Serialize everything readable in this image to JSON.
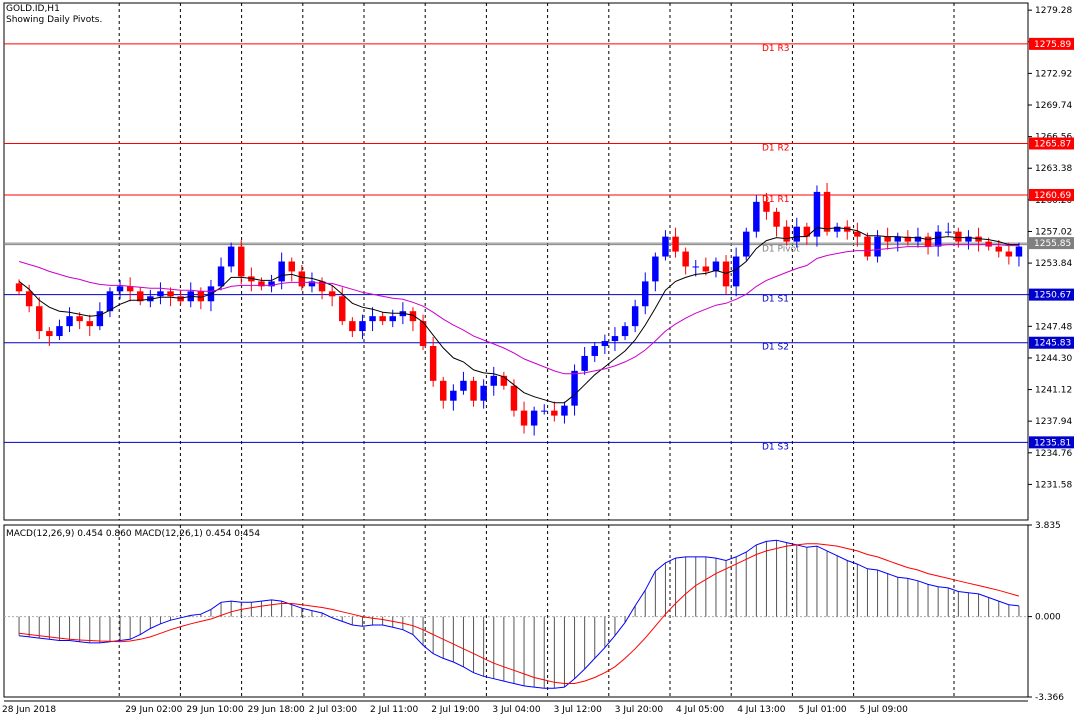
{
  "window": {
    "title": "GOLD.ID,H1",
    "subtitle": "Showing Daily Pivots."
  },
  "colors": {
    "bull": "#0000ff",
    "bear": "#ff0000",
    "ma_fast": "#000000",
    "ma_slow": "#cc00cc",
    "resistance": "#ff0000",
    "support": "#0000cc",
    "pivot": "#808080",
    "macd_main": "#0000ff",
    "macd_signal": "#ff0000",
    "grid": "#000000"
  },
  "chart_data": [
    {
      "type": "candlestick",
      "symbol": "GOLD.ID",
      "timeframe": "H1",
      "ylim": [
        1228.0,
        1280.0
      ],
      "y_ticks": [
        "1279.28",
        "1276.10",
        "1272.92",
        "1269.74",
        "1266.56",
        "1263.38",
        "1260.20",
        "1257.02",
        "1253.84",
        "1250.66",
        "1247.48",
        "1244.30",
        "1241.12",
        "1237.94",
        "1234.76",
        "1231.58"
      ],
      "x_tick_labels": [
        "28 Jun 2018",
        "29 Jun 02:00",
        "29 Jun 10:00",
        "29 Jun 18:00",
        "2 Jul 03:00",
        "2 Jul 11:00",
        "2 Jul 19:00",
        "3 Jul 04:00",
        "3 Jul 12:00",
        "3 Jul 20:00",
        "4 Jul 05:00",
        "4 Jul 13:00",
        "5 Jul 01:00",
        "5 Jul 09:00"
      ],
      "current_price": "1255.85",
      "pivot_levels": [
        {
          "name": "D1 R3",
          "value": 1275.89,
          "label": "1275.89",
          "kind": "resistance"
        },
        {
          "name": "D1 R2",
          "value": 1265.87,
          "label": "1265.87",
          "kind": "resistance"
        },
        {
          "name": "D1 R1",
          "value": 1260.69,
          "label": "1260.69",
          "kind": "resistance"
        },
        {
          "name": "D1 Pivot",
          "value": 1255.7,
          "label": "",
          "kind": "pivot"
        },
        {
          "name": "D1 S1",
          "value": 1250.67,
          "label": "1250.67",
          "kind": "support"
        },
        {
          "name": "D1 S2",
          "value": 1245.83,
          "label": "1245.83",
          "kind": "support"
        },
        {
          "name": "D1 S3",
          "value": 1235.81,
          "label": "1235.81",
          "kind": "support"
        }
      ],
      "close": [
        1251.0,
        1249.5,
        1247.0,
        1246.5,
        1247.5,
        1248.5,
        1248.0,
        1247.5,
        1249.0,
        1251.0,
        1251.5,
        1251.0,
        1250.0,
        1250.5,
        1251.0,
        1250.5,
        1250.0,
        1251.0,
        1250.0,
        1251.5,
        1253.5,
        1255.5,
        1252.5,
        1252.0,
        1251.5,
        1252.0,
        1254.0,
        1253.0,
        1251.5,
        1252.0,
        1251.0,
        1250.5,
        1248.0,
        1247.0,
        1248.0,
        1248.5,
        1248.0,
        1248.5,
        1249.0,
        1248.0,
        1245.5,
        1242.0,
        1240.0,
        1241.0,
        1242.0,
        1240.0,
        1241.5,
        1242.5,
        1241.5,
        1239.0,
        1237.5,
        1239.0,
        1239.0,
        1238.5,
        1239.5,
        1243.0,
        1244.5,
        1245.5,
        1246.0,
        1246.5,
        1247.5,
        1249.5,
        1252.0,
        1254.5,
        1256.5,
        1255.0,
        1253.5,
        1253.5,
        1253.0,
        1254.0,
        1251.5,
        1254.5,
        1257.0,
        1260.0,
        1259.0,
        1257.5,
        1256.0,
        1257.5,
        1256.5,
        1261.0,
        1257.0,
        1257.5,
        1257.0,
        1256.5,
        1254.5,
        1256.5,
        1256.0,
        1256.5,
        1256.0,
        1256.5,
        1255.5,
        1257.0,
        1257.0,
        1256.0,
        1256.5,
        1256.0,
        1255.5,
        1255.0,
        1254.5,
        1255.5
      ],
      "moving_averages": [
        {
          "kind": "fast",
          "values": [
            1252.0,
            1251.2,
            1250.1,
            1249.4,
            1249.0,
            1248.9,
            1248.7,
            1248.5,
            1248.6,
            1249.1,
            1249.7,
            1250.1,
            1250.1,
            1250.2,
            1250.4,
            1250.4,
            1250.3,
            1250.5,
            1250.4,
            1250.7,
            1251.4,
            1252.4,
            1252.4,
            1252.3,
            1252.1,
            1252.1,
            1252.6,
            1252.7,
            1252.4,
            1252.3,
            1252.0,
            1251.6,
            1250.7,
            1249.8,
            1249.4,
            1249.2,
            1248.9,
            1248.8,
            1248.8,
            1248.6,
            1247.9,
            1246.6,
            1245.3,
            1244.3,
            1243.9,
            1243.1,
            1242.8,
            1242.7,
            1242.4,
            1241.6,
            1240.8,
            1240.4,
            1240.1,
            1239.8,
            1239.8,
            1240.6,
            1241.6,
            1242.6,
            1243.4,
            1244.2,
            1245.0,
            1246.1,
            1247.6,
            1249.3,
            1251.1,
            1252.0,
            1252.4,
            1252.7,
            1252.8,
            1253.1,
            1252.8,
            1253.2,
            1254.0,
            1255.3,
            1256.1,
            1256.4,
            1256.3,
            1256.5,
            1256.5,
            1257.4,
            1257.3,
            1257.4,
            1257.3,
            1257.1,
            1256.6,
            1256.6,
            1256.5,
            1256.5,
            1256.4,
            1256.4,
            1256.2,
            1256.4,
            1256.5,
            1256.4,
            1256.4,
            1256.3,
            1256.2,
            1256.0,
            1255.7,
            1255.7
          ]
        },
        {
          "kind": "slow",
          "values": [
            1254.0,
            1253.7,
            1253.4,
            1253.0,
            1252.7,
            1252.4,
            1252.2,
            1251.9,
            1251.7,
            1251.6,
            1251.6,
            1251.5,
            1251.4,
            1251.3,
            1251.3,
            1251.2,
            1251.1,
            1251.1,
            1251.0,
            1251.0,
            1251.2,
            1251.5,
            1251.6,
            1251.6,
            1251.6,
            1251.6,
            1251.8,
            1251.9,
            1251.9,
            1251.9,
            1251.8,
            1251.8,
            1251.5,
            1251.2,
            1250.9,
            1250.7,
            1250.5,
            1250.3,
            1250.2,
            1249.9,
            1249.5,
            1248.9,
            1248.2,
            1247.6,
            1247.1,
            1246.5,
            1246.1,
            1245.7,
            1245.3,
            1244.8,
            1244.2,
            1243.8,
            1243.4,
            1243.0,
            1242.7,
            1242.7,
            1242.8,
            1243.0,
            1243.2,
            1243.5,
            1243.9,
            1244.4,
            1245.1,
            1246.0,
            1247.0,
            1247.7,
            1248.3,
            1248.8,
            1249.2,
            1249.6,
            1249.8,
            1250.2,
            1250.7,
            1251.5,
            1252.1,
            1252.5,
            1252.9,
            1253.3,
            1253.6,
            1254.3,
            1254.6,
            1254.8,
            1255.0,
            1255.1,
            1255.1,
            1255.2,
            1255.3,
            1255.4,
            1255.5,
            1255.5,
            1255.5,
            1255.6,
            1255.7,
            1255.7,
            1255.7,
            1255.7,
            1255.7,
            1255.7,
            1255.6,
            1255.6
          ]
        }
      ]
    },
    {
      "type": "bar",
      "indicator": "MACD",
      "label": "MACD(12,26,9) 0.454 0.860 MACD(12,26,1) 0.454 0.454",
      "ylim": [
        -3.366,
        3.835
      ],
      "y_ticks": [
        "3.835",
        "0.000",
        "-3.366"
      ],
      "series": [
        {
          "kind": "histogram",
          "values": [
            -0.8,
            -0.85,
            -0.9,
            -0.95,
            -1.0,
            -1.0,
            -1.05,
            -1.1,
            -1.1,
            -1.05,
            -1.0,
            -0.95,
            -0.75,
            -0.5,
            -0.3,
            -0.15,
            -0.05,
            0.05,
            0.1,
            0.3,
            0.6,
            0.65,
            0.6,
            0.6,
            0.65,
            0.7,
            0.65,
            0.5,
            0.35,
            0.25,
            0.15,
            -0.05,
            -0.2,
            -0.35,
            -0.4,
            -0.35,
            -0.35,
            -0.45,
            -0.55,
            -0.75,
            -1.2,
            -1.55,
            -1.75,
            -1.9,
            -2.1,
            -2.35,
            -2.5,
            -2.6,
            -2.7,
            -2.8,
            -2.9,
            -2.95,
            -3.0,
            -3.0,
            -2.95,
            -2.6,
            -2.2,
            -1.75,
            -1.3,
            -0.8,
            -0.25,
            0.45,
            1.1,
            1.9,
            2.25,
            2.45,
            2.5,
            2.5,
            2.5,
            2.45,
            2.35,
            2.5,
            2.7,
            3.0,
            3.15,
            3.2,
            3.1,
            3.0,
            2.9,
            2.95,
            2.75,
            2.55,
            2.35,
            2.2,
            2.0,
            1.95,
            1.8,
            1.65,
            1.6,
            1.5,
            1.35,
            1.25,
            1.2,
            1.05,
            1.0,
            0.95,
            0.8,
            0.65,
            0.5,
            0.45
          ]
        },
        {
          "kind": "signal",
          "values": [
            -0.7,
            -0.75,
            -0.8,
            -0.85,
            -0.9,
            -0.95,
            -0.98,
            -1.0,
            -1.02,
            -1.03,
            -1.05,
            -1.02,
            -0.95,
            -0.85,
            -0.7,
            -0.55,
            -0.42,
            -0.3,
            -0.2,
            -0.1,
            0.05,
            0.2,
            0.3,
            0.37,
            0.44,
            0.5,
            0.55,
            0.55,
            0.5,
            0.44,
            0.38,
            0.3,
            0.2,
            0.1,
            0.0,
            -0.07,
            -0.12,
            -0.2,
            -0.28,
            -0.38,
            -0.55,
            -0.75,
            -0.95,
            -1.15,
            -1.35,
            -1.55,
            -1.75,
            -1.95,
            -2.1,
            -2.25,
            -2.4,
            -2.55,
            -2.65,
            -2.75,
            -2.8,
            -2.8,
            -2.7,
            -2.55,
            -2.35,
            -2.1,
            -1.75,
            -1.35,
            -0.9,
            -0.4,
            0.1,
            0.55,
            0.95,
            1.3,
            1.55,
            1.8,
            2.0,
            2.2,
            2.4,
            2.6,
            2.75,
            2.85,
            2.95,
            3.0,
            3.05,
            3.05,
            3.0,
            2.95,
            2.85,
            2.75,
            2.6,
            2.5,
            2.35,
            2.2,
            2.05,
            1.95,
            1.8,
            1.7,
            1.6,
            1.5,
            1.4,
            1.3,
            1.2,
            1.1,
            0.98,
            0.86
          ]
        }
      ]
    }
  ]
}
